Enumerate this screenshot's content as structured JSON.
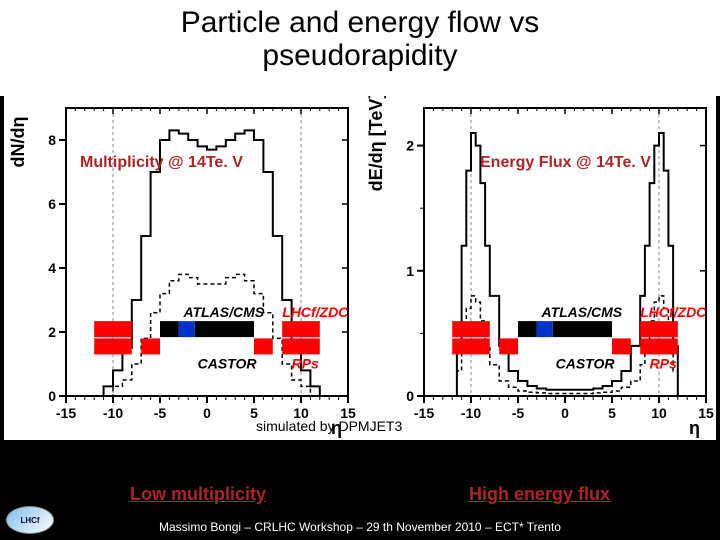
{
  "title_line1": "Particle and energy flow vs",
  "title_line2": "pseudorapidity",
  "title_color": "#000000",
  "bg_color": "#000000",
  "panel_bg": "#ffffff",
  "left_chart": {
    "type": "line",
    "ylabel": "dN/dη",
    "xlabel": "η",
    "xlim": [
      -15,
      15
    ],
    "xtick_step": 5,
    "ylim": [
      0,
      9
    ],
    "ytick_step": 2,
    "ytick_start": 0,
    "vgrid_at": [
      -10,
      10
    ],
    "solid_series_x": [
      -12,
      -11,
      -10,
      -9,
      -8,
      -7,
      -6,
      -5,
      -4,
      -3,
      -2,
      -1,
      0,
      1,
      2,
      3,
      4,
      5,
      6,
      7,
      8,
      9,
      10,
      11,
      12
    ],
    "solid_series_y": [
      0,
      0.3,
      0.8,
      1.5,
      3,
      5,
      7,
      8,
      8.3,
      8.2,
      8,
      7.8,
      7.7,
      7.8,
      8,
      8.2,
      8.3,
      8,
      7,
      5,
      3,
      1.5,
      0.8,
      0.3,
      0
    ],
    "dashed_series_x": [
      -11,
      -10,
      -9,
      -8,
      -7,
      -6,
      -5,
      -4,
      -3,
      -2,
      -1,
      0,
      1,
      2,
      3,
      4,
      5,
      6,
      7,
      8,
      9,
      10,
      11
    ],
    "dashed_series_y": [
      0,
      0.3,
      0.5,
      1,
      1.8,
      2.6,
      3.2,
      3.6,
      3.8,
      3.7,
      3.5,
      3.5,
      3.5,
      3.7,
      3.8,
      3.6,
      3.2,
      2.6,
      1.8,
      1,
      0.5,
      0.3,
      0
    ],
    "overlay_title": "Multiplicity @ 14Te. V",
    "overlay_title_color": "#b22222"
  },
  "right_chart": {
    "type": "line",
    "ylabel": "dE/dη [TeV]",
    "xlabel": "η",
    "xlim": [
      -15,
      15
    ],
    "xtick_step": 5,
    "ylim": [
      0,
      2.3
    ],
    "ytick_step": 1,
    "ytick_start": 0,
    "ytick_minor": 0.5,
    "vgrid_at": [
      -10,
      10
    ],
    "solid_series_x": [
      -12,
      -11.5,
      -11,
      -10.5,
      -10,
      -9.5,
      -9,
      -8.5,
      -8,
      -7,
      -6,
      -5,
      -4,
      -3,
      -2,
      -1,
      0,
      1,
      2,
      3,
      4,
      5,
      6,
      7,
      8,
      8.5,
      9,
      9.5,
      10,
      10.5,
      11,
      11.5,
      12
    ],
    "solid_series_y": [
      0,
      0.4,
      1.2,
      1.8,
      2.1,
      2.0,
      1.7,
      1.2,
      0.8,
      0.4,
      0.2,
      0.12,
      0.08,
      0.06,
      0.05,
      0.05,
      0.05,
      0.05,
      0.05,
      0.06,
      0.08,
      0.12,
      0.2,
      0.4,
      0.8,
      1.2,
      1.7,
      2.0,
      2.1,
      1.8,
      1.2,
      0.4,
      0
    ],
    "dashed_series_x": [
      -12,
      -11.5,
      -11,
      -10.5,
      -10,
      -9.5,
      -9,
      -8.5,
      -8,
      -7,
      -6,
      -5,
      -4,
      -3,
      -2,
      -1,
      0,
      1,
      2,
      3,
      4,
      5,
      6,
      7,
      8,
      8.5,
      9,
      9.5,
      10,
      10.5,
      11,
      11.5,
      12
    ],
    "dashed_series_y": [
      0,
      0.2,
      0.5,
      0.7,
      0.8,
      0.75,
      0.6,
      0.4,
      0.25,
      0.12,
      0.07,
      0.04,
      0.03,
      0.025,
      0.02,
      0.02,
      0.02,
      0.02,
      0.02,
      0.025,
      0.03,
      0.04,
      0.07,
      0.12,
      0.25,
      0.4,
      0.6,
      0.75,
      0.8,
      0.7,
      0.5,
      0.2,
      0
    ],
    "overlay_title": "Energy Flux @ 14Te. V",
    "overlay_title_color": "#b22222"
  },
  "axis_fontsize": 14,
  "tick_fontsize": 14,
  "line_color": "#000000",
  "grid_color": "#888888",
  "grid_dash": "3,3",
  "detector_bars": {
    "red_ranges": [
      [
        -12,
        -8
      ],
      [
        -7,
        -5
      ],
      [
        5,
        7
      ],
      [
        8,
        12
      ]
    ],
    "blue_ranges": [
      [
        -3,
        -1.3
      ]
    ],
    "black_ranges": [
      [
        -5,
        -3
      ],
      [
        -1.3,
        5
      ]
    ],
    "red": "#ff0000",
    "blue": "#0033cc",
    "black": "#000000",
    "band_h": 16
  },
  "labels": {
    "atlas_cms": "ATLAS/CMS",
    "lhcf_zdc": "LHCf/ZDC",
    "castor": "CASTOR",
    "rps": "RPs",
    "atlas_color": "#000000",
    "lhcf_color": "#ff0000",
    "castor_color": "#000000",
    "rps_color": "#ff0000"
  },
  "sim_caption": "simulated by DPMJET3",
  "bottom": {
    "left": "Low multiplicity",
    "right": "High energy flux",
    "left_color": "#b22222",
    "right_color": "#b22222"
  },
  "footer": "Massimo Bongi – CRLHC Workshop – 29 th November 2010 – ECT* Trento",
  "logo_text": "LHCf"
}
